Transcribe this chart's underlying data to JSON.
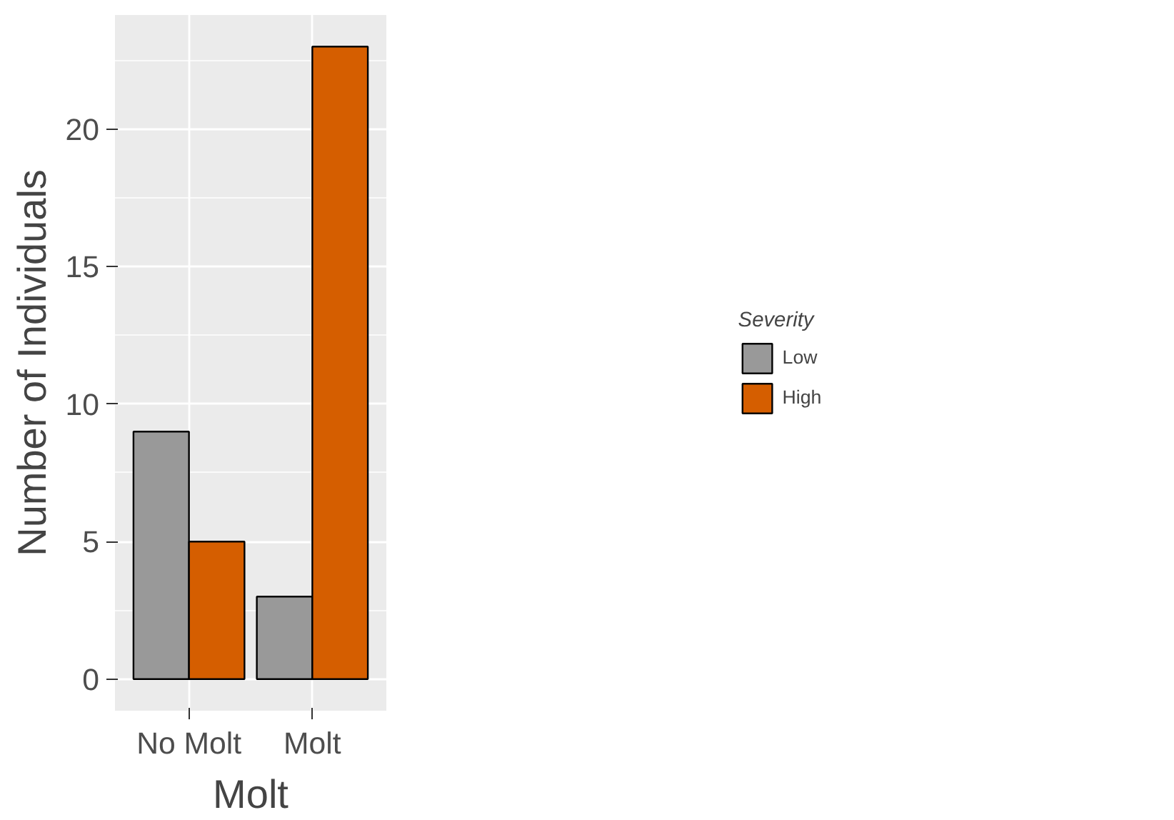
{
  "chart_data": {
    "type": "bar",
    "xlabel": "Molt",
    "ylabel": "Number of Individuals",
    "legend_title": "Severity",
    "categories": [
      "No Molt",
      "Molt"
    ],
    "series": [
      {
        "name": "Low",
        "color": "#999999",
        "values": [
          9,
          3
        ]
      },
      {
        "name": "High",
        "color": "#d55e00",
        "values": [
          5,
          23
        ]
      }
    ],
    "ylim": [
      -1.15,
      24.15
    ],
    "yticks": [
      0,
      5,
      10,
      15,
      20
    ],
    "grid": true,
    "legend": "right"
  }
}
